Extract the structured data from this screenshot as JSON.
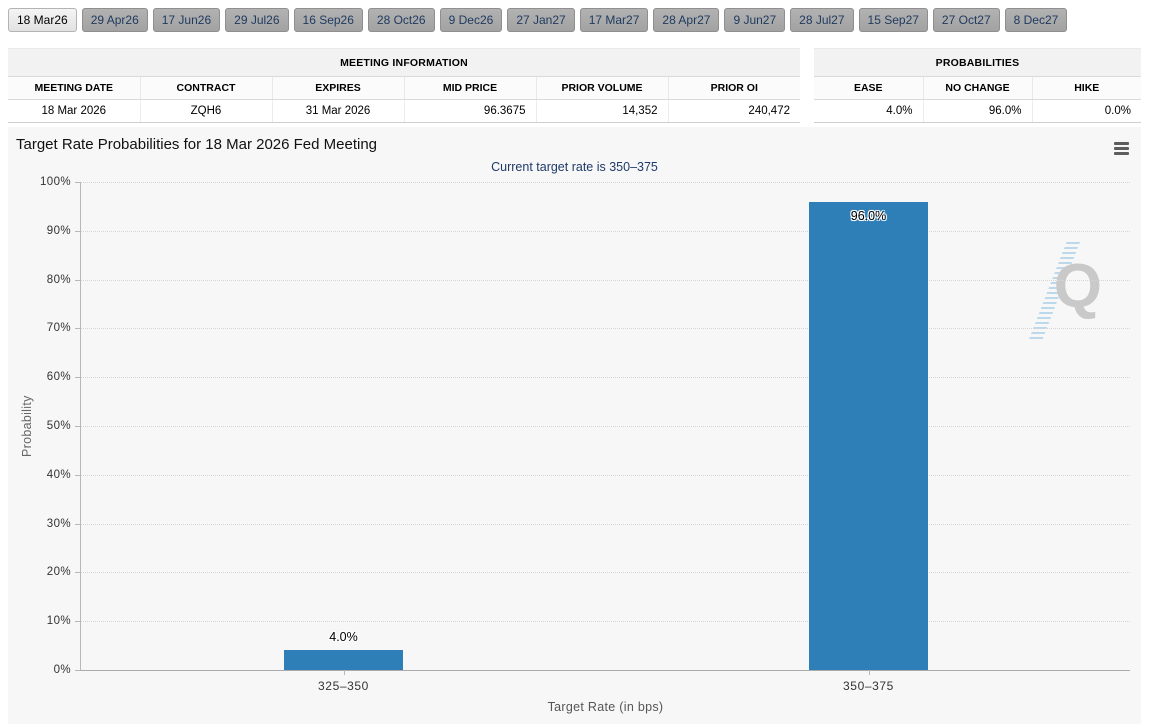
{
  "tab_bar": {
    "tabs": [
      "18 Mar26",
      "29 Apr26",
      "17 Jun26",
      "29 Jul26",
      "16 Sep26",
      "28 Oct26",
      "9 Dec26",
      "27 Jan27",
      "17 Mar27",
      "28 Apr27",
      "9 Jun27",
      "28 Jul27",
      "15 Sep27",
      "27 Oct27",
      "8 Dec27"
    ],
    "active_tab": "18 Mar26"
  },
  "meeting_info_table": {
    "title": "MEETING INFORMATION",
    "columns": [
      "MEETING DATE",
      "CONTRACT",
      "EXPIRES",
      "MID PRICE",
      "PRIOR VOLUME",
      "PRIOR OI"
    ],
    "aligns": [
      "center",
      "center",
      "center",
      "right",
      "right",
      "right"
    ],
    "row": [
      "18 Mar 2026",
      "ZQH6",
      "31 Mar 2026",
      "96.3675",
      "14,352",
      "240,472"
    ]
  },
  "probabilities_table": {
    "title": "PROBABILITIES",
    "columns": [
      "EASE",
      "NO CHANGE",
      "HIKE"
    ],
    "aligns": [
      "right",
      "right",
      "right"
    ],
    "row": [
      "4.0%",
      "96.0%",
      "0.0%"
    ]
  },
  "chart": {
    "title": "Target Rate Probabilities for 18 Mar 2026 Fed Meeting",
    "subtitle": "Current target rate is 350–375",
    "menu_icon": "hamburger-menu",
    "watermark_letter": "Q"
  },
  "chart_data": {
    "type": "bar",
    "title": "Target Rate Probabilities for 18 Mar 2026 Fed Meeting",
    "subtitle": "Current target rate is 350–375",
    "categories": [
      "325–350",
      "350–375"
    ],
    "values": [
      4.0,
      96.0
    ],
    "value_labels": [
      "4.0%",
      "96.0%"
    ],
    "xlabel": "Target Rate (in bps)",
    "ylabel": "Probability",
    "ylim": [
      0,
      100
    ],
    "yticks": [
      0,
      10,
      20,
      30,
      40,
      50,
      60,
      70,
      80,
      90,
      100
    ],
    "ytick_labels": [
      "0%",
      "10%",
      "20%",
      "30%",
      "40%",
      "50%",
      "60%",
      "70%",
      "80%",
      "90%",
      "100%"
    ],
    "bar_color": "#2E7EB8",
    "grid": "dotted-horizontal",
    "legend": "none"
  },
  "colors": {
    "bar": "#2E7EB8",
    "subtitle_text": "#1F3A68",
    "tab_text": "#1E3A5F",
    "chart_background": "#F7F7F7"
  }
}
